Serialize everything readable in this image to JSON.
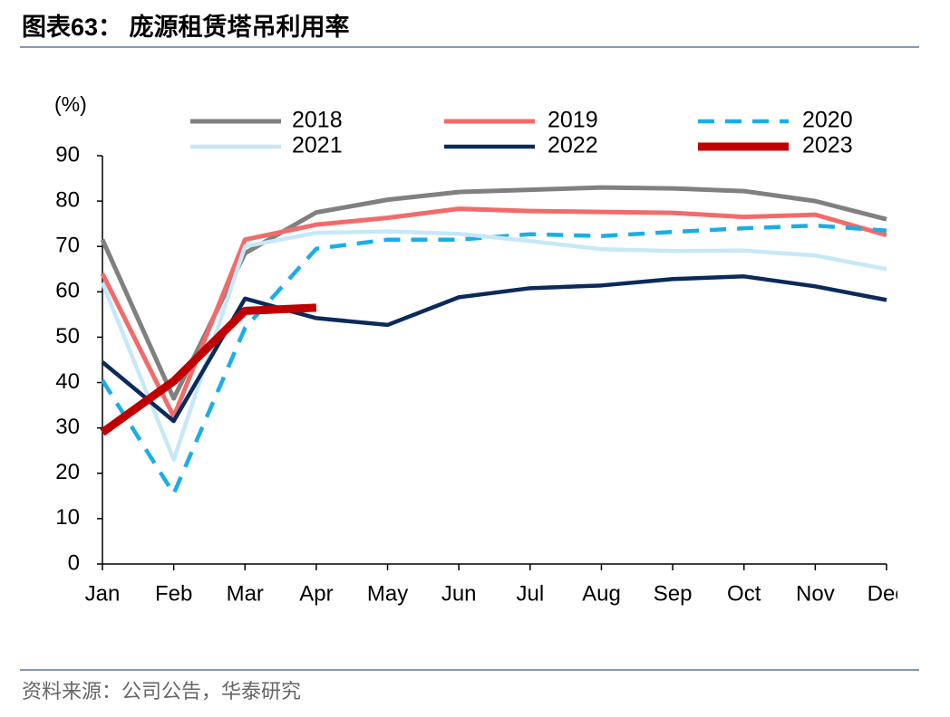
{
  "title": "图表63：  庞源租赁塔吊利用率",
  "source": "资料来源：公司公告，华泰研究",
  "chart_data": {
    "type": "line",
    "y_label": "(%)",
    "categories": [
      "Jan",
      "Feb",
      "Mar",
      "Apr",
      "May",
      "Jun",
      "Jul",
      "Aug",
      "Sep",
      "Oct",
      "Nov",
      "Dec"
    ],
    "ylim": [
      0,
      90
    ],
    "yticks": [
      0,
      10,
      20,
      30,
      40,
      50,
      60,
      70,
      80,
      90
    ],
    "series": [
      {
        "name": "2018",
        "color": "#808080",
        "values": [
          71.5,
          36.5,
          68.5,
          77.5,
          80.3,
          82,
          82.5,
          83,
          82.8,
          82.2,
          80,
          76
        ]
      },
      {
        "name": "2019",
        "color": "#f26b6b",
        "values": [
          64,
          32.5,
          71.5,
          74.8,
          76.3,
          78.3,
          77.8,
          77.6,
          77.4,
          76.5,
          77,
          72.5
        ]
      },
      {
        "name": "2020",
        "color": "#1aaee6",
        "dashed": true,
        "values": [
          40.5,
          15.5,
          52,
          69.5,
          71.5,
          71.5,
          72.7,
          72.3,
          73.2,
          74,
          74.6,
          73.5
        ]
      },
      {
        "name": "2021",
        "color": "#c6e8f8",
        "values": [
          62,
          23,
          70,
          73,
          73.3,
          72.8,
          71.2,
          69.4,
          69,
          69.1,
          68,
          65
        ]
      },
      {
        "name": "2022",
        "color": "#0b2a5c",
        "values": [
          44.5,
          31.5,
          58.5,
          54.2,
          52.7,
          58.8,
          60.8,
          61.4,
          62.8,
          63.4,
          61.2,
          58.2
        ]
      },
      {
        "name": "2023",
        "color": "#c00000",
        "values": [
          29,
          40.3,
          55.8,
          56.5,
          null,
          null,
          null,
          null,
          null,
          null,
          null,
          null
        ]
      }
    ]
  }
}
